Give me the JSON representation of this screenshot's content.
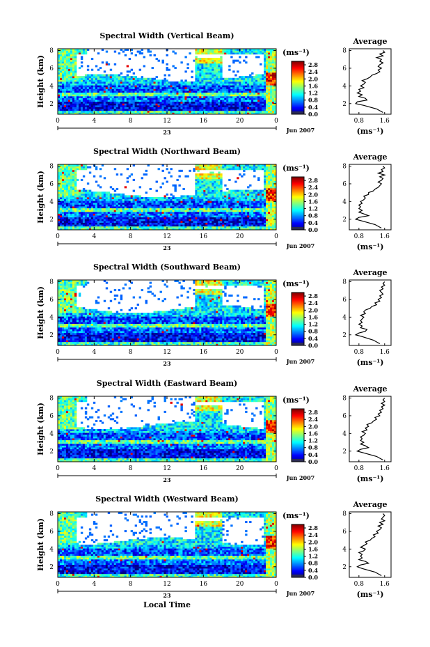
{
  "chart_data": [
    {
      "type": "heatmap",
      "title": "Spectral Width (Vertical Beam)",
      "ylabel": "Height (km)",
      "xticks": [
        "0",
        "4",
        "8",
        "12",
        "16",
        "20",
        "0"
      ],
      "xlim": [
        0,
        24
      ],
      "yticks": [
        "2",
        "4",
        "6",
        "8"
      ],
      "ylim": [
        0.8,
        8.2
      ],
      "colorbar": {
        "unit": "(ms⁻¹)",
        "ticks": [
          "0.0",
          "0.4",
          "0.8",
          "1.2",
          "1.6",
          "2.0",
          "2.4",
          "2.8"
        ],
        "range": [
          0,
          3.0
        ]
      },
      "date_day": "23",
      "date_month_year": "Jun 2007",
      "profile": {
        "title": "Average",
        "xlabel": "(ms⁻¹)",
        "xticks": [
          "0.8",
          "1.6"
        ],
        "yticks": [
          "2",
          "4",
          "6",
          "8"
        ],
        "xlim": [
          0.5,
          1.8
        ],
        "ylim": [
          0.8,
          8.2
        ],
        "heights": [
          1.0,
          1.4,
          1.8,
          2.0,
          2.2,
          2.4,
          2.6,
          2.8,
          3.0,
          3.2,
          3.4,
          3.6,
          3.8,
          4.0,
          4.2,
          4.4,
          4.6,
          4.8,
          5.0,
          5.2,
          5.4,
          5.6,
          5.8,
          6.0,
          6.2,
          6.4,
          6.6,
          6.8,
          7.0,
          7.2,
          7.4,
          7.6,
          7.8,
          8.0
        ],
        "values": [
          1.55,
          1.35,
          0.95,
          0.7,
          0.75,
          1.05,
          1.0,
          0.8,
          0.9,
          0.75,
          0.85,
          0.8,
          0.95,
          0.85,
          0.95,
          1.0,
          0.9,
          1.05,
          1.15,
          1.2,
          1.35,
          1.45,
          1.4,
          1.5,
          1.4,
          1.45,
          1.55,
          1.45,
          1.5,
          1.35,
          1.55,
          1.45,
          1.6,
          1.55
        ]
      }
    },
    {
      "type": "heatmap",
      "title": "Spectral Width (Northward Beam)",
      "ylabel": "Height (km)",
      "xticks": [
        "0",
        "4",
        "8",
        "12",
        "16",
        "20",
        "0"
      ],
      "xlim": [
        0,
        24
      ],
      "yticks": [
        "2",
        "4",
        "6",
        "8"
      ],
      "ylim": [
        0.8,
        8.2
      ],
      "colorbar": {
        "unit": "(ms⁻¹)",
        "ticks": [
          "0.0",
          "0.4",
          "0.8",
          "1.2",
          "1.6",
          "2.0",
          "2.4",
          "2.8"
        ],
        "range": [
          0,
          3.0
        ]
      },
      "date_day": "23",
      "date_month_year": "Jun 2007",
      "profile": {
        "title": "Average",
        "xlabel": "(ms⁻¹)",
        "xticks": [
          "0.8",
          "1.6"
        ],
        "yticks": [
          "2",
          "4",
          "6",
          "8"
        ],
        "xlim": [
          0.5,
          1.8
        ],
        "ylim": [
          0.8,
          8.2
        ],
        "heights": [
          1.0,
          1.4,
          1.8,
          2.0,
          2.2,
          2.4,
          2.6,
          2.8,
          3.0,
          3.2,
          3.4,
          3.6,
          3.8,
          4.0,
          4.2,
          4.4,
          4.6,
          4.8,
          5.0,
          5.2,
          5.4,
          5.6,
          5.8,
          6.0,
          6.2,
          6.4,
          6.6,
          6.8,
          7.0,
          7.2,
          7.4,
          7.6,
          7.8,
          8.0
        ],
        "values": [
          1.5,
          1.3,
          0.9,
          0.7,
          0.8,
          1.1,
          0.95,
          0.8,
          0.9,
          0.8,
          0.85,
          0.8,
          0.9,
          0.85,
          0.95,
          1.0,
          0.95,
          1.1,
          1.1,
          1.25,
          1.3,
          1.4,
          1.45,
          1.5,
          1.4,
          1.5,
          1.55,
          1.45,
          1.6,
          1.4,
          1.55,
          1.5,
          1.6,
          1.55
        ]
      }
    },
    {
      "type": "heatmap",
      "title": "Spectral Width (Southward Beam)",
      "ylabel": "Height (km)",
      "xticks": [
        "0",
        "4",
        "8",
        "12",
        "16",
        "20",
        "0"
      ],
      "xlim": [
        0,
        24
      ],
      "yticks": [
        "2",
        "4",
        "6",
        "8"
      ],
      "ylim": [
        0.8,
        8.2
      ],
      "colorbar": {
        "unit": "(ms⁻¹)",
        "ticks": [
          "0.0",
          "0.4",
          "0.8",
          "1.2",
          "1.6",
          "2.0",
          "2.4",
          "2.8"
        ],
        "range": [
          0,
          3.0
        ]
      },
      "date_day": "23",
      "date_month_year": "Jun 2007",
      "profile": {
        "title": "Average",
        "xlabel": "(ms⁻¹)",
        "xticks": [
          "0.8",
          "1.6"
        ],
        "yticks": [
          "2",
          "4",
          "6",
          "8"
        ],
        "xlim": [
          0.5,
          1.8
        ],
        "ylim": [
          0.8,
          8.2
        ],
        "heights": [
          1.0,
          1.4,
          1.8,
          2.0,
          2.2,
          2.4,
          2.6,
          2.8,
          3.0,
          3.2,
          3.4,
          3.6,
          3.8,
          4.0,
          4.2,
          4.4,
          4.6,
          4.8,
          5.0,
          5.2,
          5.4,
          5.6,
          5.8,
          6.0,
          6.2,
          6.4,
          6.6,
          6.8,
          7.0,
          7.2,
          7.4,
          7.6,
          7.8,
          8.0
        ],
        "values": [
          1.45,
          1.25,
          0.9,
          0.7,
          0.8,
          1.0,
          1.05,
          0.85,
          0.9,
          0.8,
          0.9,
          0.85,
          0.9,
          0.95,
          0.85,
          1.0,
          0.95,
          1.0,
          1.15,
          1.2,
          1.35,
          1.3,
          1.45,
          1.4,
          1.5,
          1.45,
          1.55,
          1.5,
          1.45,
          1.55,
          1.5,
          1.6,
          1.55,
          1.6
        ]
      }
    },
    {
      "type": "heatmap",
      "title": "Spectral Width (Eastward Beam)",
      "ylabel": "Height (km)",
      "xticks": [
        "0",
        "4",
        "8",
        "12",
        "16",
        "20",
        "0"
      ],
      "xlim": [
        0,
        24
      ],
      "yticks": [
        "2",
        "4",
        "6",
        "8"
      ],
      "ylim": [
        0.8,
        8.2
      ],
      "colorbar": {
        "unit": "(ms⁻¹)",
        "ticks": [
          "0.0",
          "0.4",
          "0.8",
          "1.2",
          "1.6",
          "2.0",
          "2.4",
          "2.8"
        ],
        "range": [
          0,
          3.0
        ]
      },
      "date_day": "23",
      "date_month_year": "Jun 2007",
      "profile": {
        "title": "Average",
        "xlabel": "(ms⁻¹)",
        "xticks": [
          "0.8",
          "1.6"
        ],
        "yticks": [
          "2",
          "4",
          "6",
          "8"
        ],
        "xlim": [
          0.5,
          1.8
        ],
        "ylim": [
          0.8,
          8.2
        ],
        "heights": [
          1.0,
          1.4,
          1.8,
          2.0,
          2.2,
          2.4,
          2.6,
          2.8,
          3.0,
          3.2,
          3.4,
          3.6,
          3.8,
          4.0,
          4.2,
          4.4,
          4.6,
          4.8,
          5.0,
          5.2,
          5.4,
          5.6,
          5.8,
          6.0,
          6.2,
          6.4,
          6.6,
          6.8,
          7.0,
          7.2,
          7.4,
          7.6,
          7.8,
          8.0
        ],
        "values": [
          1.55,
          1.35,
          0.95,
          0.75,
          0.85,
          1.1,
          1.0,
          0.85,
          0.95,
          0.85,
          0.9,
          0.85,
          0.95,
          1.0,
          0.9,
          1.05,
          1.0,
          1.1,
          1.05,
          1.2,
          1.25,
          1.35,
          1.3,
          1.45,
          1.4,
          1.5,
          1.45,
          1.55,
          1.5,
          1.6,
          1.5,
          1.6,
          1.55,
          1.6
        ]
      }
    },
    {
      "type": "heatmap",
      "title": "Spectral Width (Westward Beam)",
      "ylabel": "Height (km)",
      "xlabel": "Local Time",
      "xticks": [
        "0",
        "4",
        "8",
        "12",
        "16",
        "20",
        "0"
      ],
      "xlim": [
        0,
        24
      ],
      "yticks": [
        "2",
        "4",
        "6",
        "8"
      ],
      "ylim": [
        0.8,
        8.2
      ],
      "colorbar": {
        "unit": "(ms⁻¹)",
        "ticks": [
          "0.0",
          "0.4",
          "0.8",
          "1.2",
          "1.6",
          "2.0",
          "2.4",
          "2.8"
        ],
        "range": [
          0,
          3.0
        ]
      },
      "date_day": "23",
      "date_month_year": "Jun 2007",
      "profile": {
        "title": "Average",
        "xlabel": "(ms⁻¹)",
        "xticks": [
          "0.8",
          "1.6"
        ],
        "yticks": [
          "2",
          "4",
          "6",
          "8"
        ],
        "xlim": [
          0.5,
          1.8
        ],
        "ylim": [
          0.8,
          8.2
        ],
        "heights": [
          1.0,
          1.4,
          1.8,
          2.0,
          2.2,
          2.4,
          2.6,
          2.8,
          3.0,
          3.2,
          3.4,
          3.6,
          3.8,
          4.0,
          4.2,
          4.4,
          4.6,
          4.8,
          5.0,
          5.2,
          5.4,
          5.6,
          5.8,
          6.0,
          6.2,
          6.4,
          6.6,
          6.8,
          7.0,
          7.2,
          7.4,
          7.6,
          7.8,
          8.0
        ],
        "values": [
          1.5,
          1.3,
          0.9,
          0.75,
          0.85,
          1.1,
          1.0,
          0.8,
          0.9,
          0.85,
          0.9,
          0.8,
          0.95,
          1.0,
          0.85,
          0.95,
          1.05,
          1.0,
          1.15,
          1.2,
          1.3,
          1.25,
          1.4,
          1.35,
          1.45,
          1.5,
          1.4,
          1.55,
          1.45,
          1.6,
          1.5,
          1.55,
          1.6,
          1.55
        ]
      }
    }
  ]
}
